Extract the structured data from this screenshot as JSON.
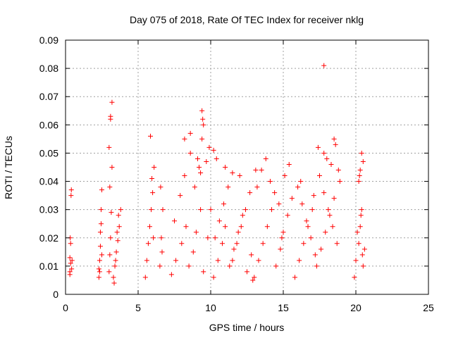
{
  "chart_data": {
    "type": "scatter",
    "title": "Day 075 of 2018, Rate Of TEC Index for receiver nklg",
    "xlabel": "GPS time / hours",
    "ylabel": "ROTI / TECUs",
    "xlim": [
      0,
      25
    ],
    "ylim": [
      0,
      0.09
    ],
    "xticks": [
      0,
      5,
      10,
      15,
      20,
      25
    ],
    "xtick_labels": [
      "0",
      "5",
      "10",
      "15",
      "20",
      "25"
    ],
    "yticks": [
      0,
      0.01,
      0.02,
      0.03,
      0.04,
      0.05,
      0.06,
      0.07,
      0.08,
      0.09
    ],
    "ytick_labels": [
      "0",
      "0.01",
      "0.02",
      "0.03",
      "0.04",
      "0.05",
      "0.06",
      "0.07",
      "0.08",
      "0.09"
    ],
    "grid": true,
    "marker": "plus",
    "marker_color": "#ff0000",
    "series": [
      {
        "x": [
          0.3,
          0.3,
          0.32,
          0.35,
          0.35,
          0.38,
          0.4,
          0.42,
          0.45,
          0.3,
          2.3,
          2.35,
          2.4,
          2.45,
          2.5,
          2.3,
          2.4,
          2.5,
          2.35,
          2.45,
          3.0,
          3.05,
          3.1,
          3.15,
          3.2,
          3.0,
          3.1,
          3.2,
          3.1,
          3.05,
          3.3,
          3.4,
          3.5,
          3.6,
          3.7,
          3.8,
          3.35,
          3.45,
          3.55,
          3.65,
          5.5,
          5.6,
          5.7,
          5.8,
          5.9,
          6.0,
          6.1,
          5.85,
          5.95,
          6.05,
          6.5,
          6.6,
          6.7,
          6.55,
          6.65,
          7.3,
          7.6,
          8.0,
          8.3,
          8.5,
          8.8,
          9.0,
          9.3,
          9.5,
          9.8,
          7.5,
          7.9,
          8.2,
          8.6,
          8.9,
          9.2,
          9.4,
          9.7,
          9.9,
          10.0,
          9.4,
          9.45,
          9.5,
          8.6,
          8.2,
          9.1,
          9.3,
          10.2,
          10.5,
          10.8,
          11.0,
          11.3,
          11.6,
          11.9,
          12.2,
          12.5,
          12.8,
          10.3,
          10.6,
          10.9,
          11.2,
          11.5,
          11.8,
          12.1,
          12.4,
          12.7,
          12.9,
          10.2,
          10.4,
          11.0,
          11.5,
          12.0,
          13.0,
          13.3,
          13.6,
          13.9,
          14.2,
          14.5,
          14.8,
          15.0,
          15.3,
          15.6,
          13.2,
          13.5,
          13.8,
          14.1,
          14.4,
          14.7,
          15.1,
          15.4,
          13.1,
          14.9,
          15.8,
          16.1,
          16.4,
          16.7,
          17.0,
          17.3,
          17.6,
          17.9,
          18.2,
          18.5,
          16.0,
          16.3,
          16.6,
          16.9,
          17.2,
          17.5,
          17.8,
          18.1,
          18.4,
          18.7,
          17.4,
          17.8,
          18.0,
          18.3,
          18.6,
          18.8,
          18.9,
          18.5,
          16.2,
          17.1,
          17.8,
          19.9,
          20.0,
          20.2,
          20.3,
          20.4,
          20.5,
          20.6,
          20.1,
          20.35,
          20.45,
          20.2,
          20.3,
          20.4,
          20.5,
          20.25
        ],
        "y": [
          0.007,
          0.013,
          0.02,
          0.018,
          0.011,
          0.035,
          0.037,
          0.009,
          0.012,
          0.008,
          0.006,
          0.012,
          0.017,
          0.03,
          0.037,
          0.009,
          0.022,
          0.014,
          0.008,
          0.025,
          0.008,
          0.014,
          0.02,
          0.029,
          0.045,
          0.052,
          0.062,
          0.068,
          0.063,
          0.038,
          0.006,
          0.01,
          0.015,
          0.019,
          0.024,
          0.03,
          0.004,
          0.012,
          0.022,
          0.028,
          0.006,
          0.012,
          0.018,
          0.024,
          0.03,
          0.036,
          0.045,
          0.056,
          0.041,
          0.02,
          0.01,
          0.02,
          0.03,
          0.038,
          0.015,
          0.007,
          0.012,
          0.018,
          0.024,
          0.01,
          0.015,
          0.022,
          0.03,
          0.008,
          0.02,
          0.026,
          0.035,
          0.042,
          0.05,
          0.038,
          0.045,
          0.055,
          0.047,
          0.052,
          0.03,
          0.065,
          0.062,
          0.06,
          0.057,
          0.055,
          0.048,
          0.043,
          0.006,
          0.012,
          0.018,
          0.024,
          0.01,
          0.016,
          0.022,
          0.028,
          0.008,
          0.014,
          0.02,
          0.026,
          0.032,
          0.038,
          0.012,
          0.018,
          0.024,
          0.03,
          0.036,
          0.005,
          0.051,
          0.048,
          0.045,
          0.043,
          0.042,
          0.006,
          0.012,
          0.018,
          0.024,
          0.03,
          0.01,
          0.016,
          0.022,
          0.028,
          0.034,
          0.038,
          0.044,
          0.048,
          0.04,
          0.036,
          0.032,
          0.042,
          0.046,
          0.044,
          0.02,
          0.006,
          0.012,
          0.018,
          0.024,
          0.03,
          0.01,
          0.016,
          0.022,
          0.028,
          0.034,
          0.038,
          0.032,
          0.026,
          0.02,
          0.014,
          0.042,
          0.036,
          0.03,
          0.024,
          0.018,
          0.052,
          0.05,
          0.048,
          0.046,
          0.053,
          0.044,
          0.04,
          0.055,
          0.04,
          0.035,
          0.081,
          0.006,
          0.012,
          0.018,
          0.024,
          0.03,
          0.01,
          0.016,
          0.022,
          0.028,
          0.014,
          0.04,
          0.044,
          0.05,
          0.047,
          0.042
        ]
      }
    ]
  }
}
